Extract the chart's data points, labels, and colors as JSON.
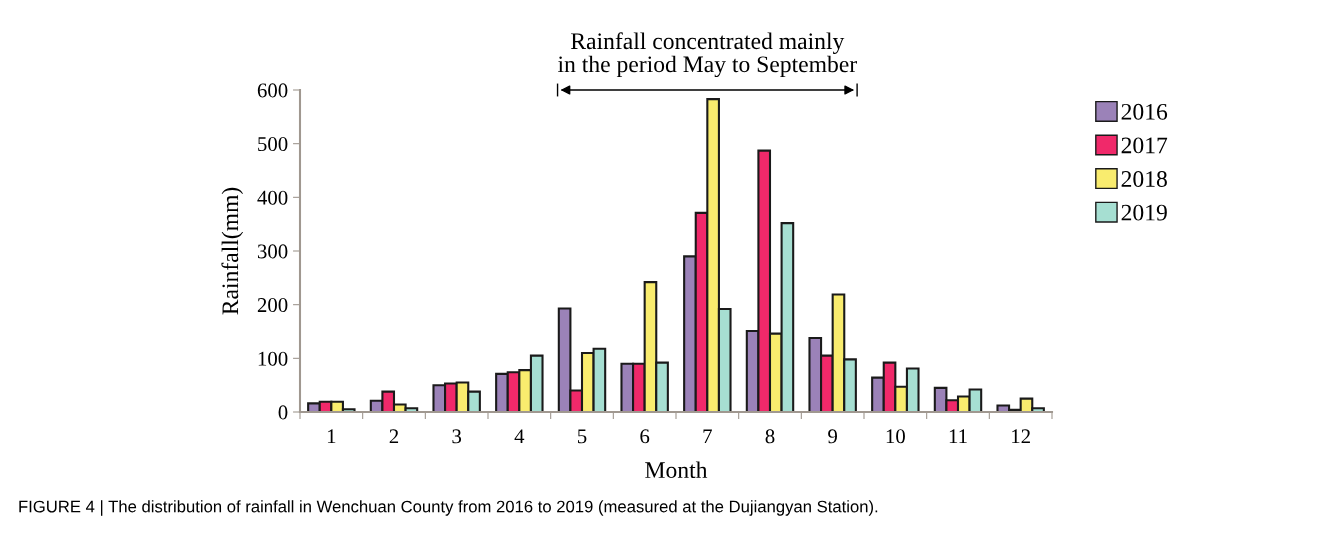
{
  "chart_data": {
    "type": "bar",
    "xlabel": "Month",
    "ylabel": "Rainfall(mm)",
    "categories": [
      "1",
      "2",
      "3",
      "4",
      "5",
      "6",
      "7",
      "8",
      "9",
      "10",
      "11",
      "12"
    ],
    "series": [
      {
        "name": "2016",
        "color": "#9b82b8",
        "values": [
          16,
          21,
          50,
          71,
          193,
          90,
          290,
          151,
          138,
          64,
          45,
          12
        ]
      },
      {
        "name": "2017",
        "color": "#f0296a",
        "values": [
          19,
          38,
          53,
          74,
          40,
          90,
          371,
          487,
          105,
          92,
          22,
          4
        ]
      },
      {
        "name": "2018",
        "color": "#f9ec6e",
        "values": [
          19,
          14,
          55,
          78,
          110,
          242,
          583,
          146,
          219,
          47,
          29,
          25
        ]
      },
      {
        "name": "2019",
        "color": "#a6dfd2",
        "values": [
          5,
          7,
          38,
          105,
          118,
          92,
          192,
          352,
          98,
          81,
          42,
          7
        ]
      }
    ],
    "ylim": [
      0,
      600
    ],
    "yticks": [
      0,
      100,
      200,
      300,
      400,
      500,
      600
    ],
    "grid": false,
    "legend": "top right",
    "annotations": [
      "Rainfall concentrated mainly\nin the period May to September",
      "FIGURE 4 | The distribution of rainfall in Wenchuan County from 2016 to 2019 (measured at the Dujiangyan Station)."
    ]
  }
}
